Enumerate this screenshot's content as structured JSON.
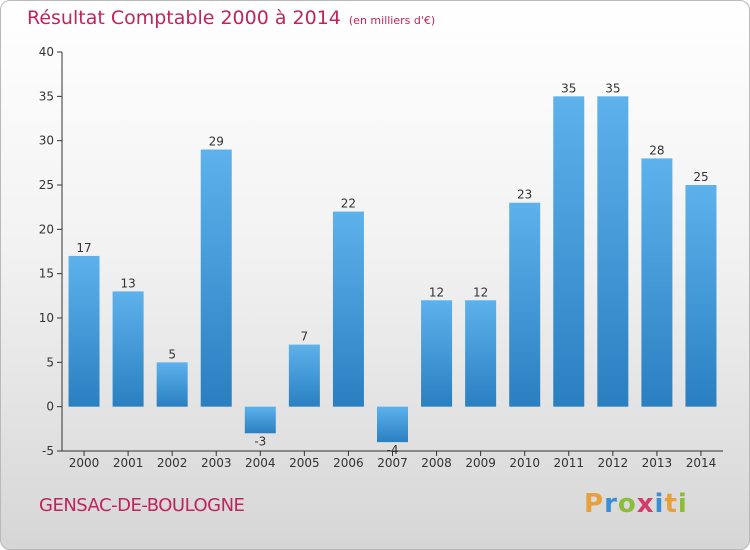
{
  "title": "Résultat Comptable 2000 à 2014",
  "unit": "(en milliers d'€)",
  "commune": "GENSAC-DE-BOULOGNE",
  "logo": {
    "letters": [
      "P",
      "r",
      "o",
      "x",
      "i",
      "t",
      "i"
    ],
    "colors": [
      "#e8a13a",
      "#3a8fd4",
      "#8bbd3a",
      "#d23b6c",
      "#3a8fd4",
      "#e8a13a",
      "#8bbd3a"
    ]
  },
  "colors": {
    "bar_top": "#5db2ec",
    "bar_bottom": "#2a7fc1",
    "title": "#c0245c"
  },
  "chart_data": {
    "type": "bar",
    "title": "Résultat Comptable 2000 à 2014",
    "xlabel": "",
    "ylabel": "",
    "categories": [
      "2000",
      "2001",
      "2002",
      "2003",
      "2004",
      "2005",
      "2006",
      "2007",
      "2008",
      "2009",
      "2010",
      "2011",
      "2012",
      "2013",
      "2014"
    ],
    "values": [
      17,
      13,
      5,
      29,
      -3,
      7,
      22,
      -4,
      12,
      12,
      23,
      35,
      35,
      28,
      25
    ],
    "ylim": [
      -5,
      40
    ],
    "yticks": [
      -5,
      0,
      5,
      10,
      15,
      20,
      25,
      30,
      35,
      40
    ],
    "grid": false
  }
}
